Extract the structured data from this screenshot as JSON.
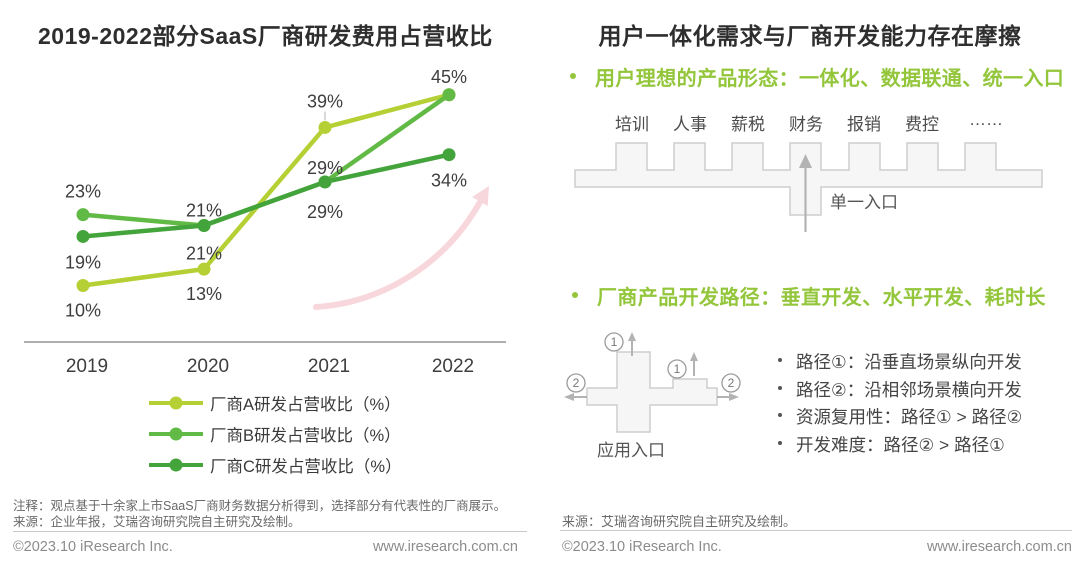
{
  "left_panel": {
    "title": "2019-2022部分SaaS厂商研发费用占营收比",
    "note": "注释：观点基于十余家上市SaaS厂商财务数据分析得到，选择部分有代表性的厂商展示。",
    "source": "来源：企业年报，艾瑞咨询研究院自主研究及绘制。",
    "footer": {
      "copyright": "©2023.10 iResearch Inc.",
      "website": "www.iresearch.com.cn"
    }
  },
  "chart_data": {
    "type": "line",
    "title": "2019-2022部分SaaS厂商研发费用占营收比",
    "categories": [
      "2019",
      "2020",
      "2021",
      "2022"
    ],
    "series": [
      {
        "name": "厂商A研发占营收比（%）",
        "color": "#b5d034",
        "values": [
          10,
          13,
          39,
          45
        ]
      },
      {
        "name": "厂商B研发占营收比（%）",
        "color": "#62ba46",
        "values": [
          23,
          21,
          29,
          45
        ]
      },
      {
        "name": "厂商C研发占营收比（%）",
        "color": "#44a43c",
        "values": [
          19,
          21,
          29,
          34
        ]
      }
    ],
    "ylim": [
      0,
      50
    ],
    "grid": false,
    "legend_position": "bottom-center",
    "data_label_format": "{value}%",
    "annotations": [
      "light-pink upward growth swoosh arrow behind lines"
    ]
  },
  "right_panel": {
    "title": "用户一体化需求与厂商开发能力存在摩擦",
    "bullet1": "用户理想的产品形态：一体化、数据联通、统一入口",
    "modules": [
      "培训",
      "人事",
      "薪税",
      "财务",
      "报销",
      "费控",
      "……"
    ],
    "single_entry_label": "单一入口",
    "bullet2": "厂商产品开发路径：垂直开发、水平开发、耗时长",
    "app_entry_label": "应用入口",
    "route_badge1": "1",
    "route_badge2": "2",
    "path_notes": [
      "路径①：沿垂直场景纵向开发",
      "路径②：沿相邻场景横向开发",
      "资源复用性：路径① > 路径②",
      "开发难度：路径② > 路径①"
    ],
    "source": "来源：艾瑞咨询研究院自主研究及绘制。",
    "footer": {
      "copyright": "©2023.10 iResearch Inc.",
      "website": "www.iresearch.com.cn"
    }
  },
  "colors": {
    "green_heading": "#93c63b",
    "pink_arrow": "#f8d7dc",
    "shape_fill": "#f6f6f6",
    "shape_stroke": "#cdcdcd",
    "arrow_gray": "#b3b3b3",
    "axis": "#949494"
  }
}
